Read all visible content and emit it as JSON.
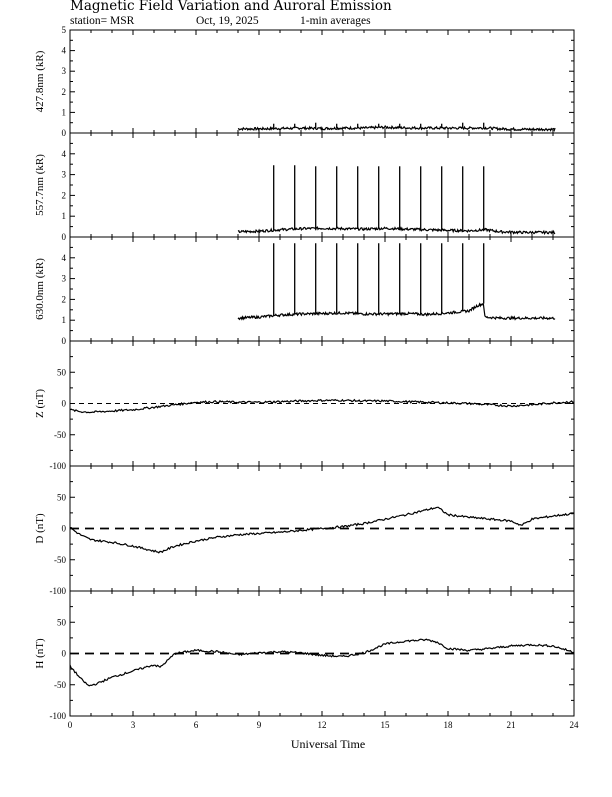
{
  "header": {
    "title": "Magnetic Field Variation and Auroral Emission",
    "station": "station= MSR",
    "date": "Oct, 19, 2025",
    "averaging": "1-min averages"
  },
  "chart_data": {
    "type": "line",
    "xlabel": "Universal Time",
    "xlim": [
      0,
      24
    ],
    "xticks": [
      0,
      3,
      6,
      9,
      12,
      15,
      18,
      21,
      24
    ],
    "panels": [
      {
        "id": "em4278",
        "ylabel": "427.8nm (kR)",
        "ylim": [
          0,
          5
        ],
        "yticks": [
          0,
          1,
          2,
          3,
          4,
          5
        ],
        "zero_line": false,
        "data_range": [
          8.0,
          23.1
        ],
        "series": {
          "x": [
            8.0,
            9.0,
            10.0,
            11.0,
            12.0,
            13.0,
            14.0,
            15.0,
            16.0,
            17.0,
            18.0,
            19.0,
            19.8,
            20.5,
            21.5,
            23.1
          ],
          "y": [
            0.2,
            0.2,
            0.22,
            0.24,
            0.22,
            0.24,
            0.24,
            0.28,
            0.25,
            0.24,
            0.24,
            0.24,
            0.25,
            0.2,
            0.18,
            0.18
          ]
        },
        "spikes": {
          "x": [
            9.7,
            10.7,
            11.7,
            12.7,
            13.7,
            14.7,
            15.7,
            16.7,
            17.7,
            18.7,
            19.7
          ],
          "y": [
            0.45,
            0.45,
            0.5,
            0.45,
            0.45,
            0.45,
            0.45,
            0.45,
            0.45,
            0.5,
            0.5
          ]
        }
      },
      {
        "id": "em5577",
        "ylabel": "557.7nm (kR)",
        "ylim": [
          0,
          5
        ],
        "yticks": [
          0,
          1,
          2,
          3,
          4
        ],
        "zero_line": false,
        "data_range": [
          8.0,
          23.1
        ],
        "series": {
          "x": [
            8.0,
            9.0,
            10.0,
            11.0,
            12.0,
            13.0,
            14.0,
            15.0,
            16.0,
            17.0,
            18.0,
            19.0,
            19.8,
            20.5,
            21.5,
            23.1
          ],
          "y": [
            0.25,
            0.28,
            0.35,
            0.4,
            0.42,
            0.4,
            0.38,
            0.42,
            0.38,
            0.35,
            0.32,
            0.3,
            0.35,
            0.25,
            0.22,
            0.22
          ]
        },
        "spikes": {
          "x": [
            9.7,
            10.7,
            11.7,
            12.7,
            13.7,
            14.7,
            15.7,
            16.7,
            17.7,
            18.7,
            19.7
          ],
          "y": [
            3.45,
            3.45,
            3.4,
            3.4,
            3.4,
            3.4,
            3.4,
            3.4,
            3.4,
            3.4,
            3.4
          ]
        }
      },
      {
        "id": "em6300",
        "ylabel": "630.0nm (kR)",
        "ylim": [
          0,
          5
        ],
        "yticks": [
          0,
          1,
          2,
          3,
          4
        ],
        "zero_line": false,
        "data_range": [
          8.0,
          23.1
        ],
        "series": {
          "x": [
            8.0,
            9.0,
            10.0,
            11.0,
            12.0,
            13.0,
            14.0,
            15.0,
            16.0,
            17.0,
            18.0,
            19.0,
            19.4,
            19.7,
            19.75,
            20.5,
            21.5,
            23.1
          ],
          "y": [
            1.1,
            1.15,
            1.25,
            1.3,
            1.32,
            1.35,
            1.3,
            1.3,
            1.32,
            1.28,
            1.35,
            1.45,
            1.7,
            1.8,
            1.15,
            1.1,
            1.1,
            1.1
          ]
        },
        "spikes": {
          "x": [
            9.7,
            10.7,
            11.7,
            12.7,
            13.7,
            14.7,
            15.7,
            16.7,
            17.7,
            18.7,
            19.7
          ],
          "y": [
            4.7,
            4.7,
            4.7,
            4.7,
            4.7,
            4.7,
            4.7,
            4.7,
            4.7,
            4.7,
            4.7
          ]
        }
      },
      {
        "id": "magZ",
        "ylabel": "Z (nT)",
        "ylim": [
          -100,
          100
        ],
        "yticks": [
          -100,
          -50,
          0,
          50
        ],
        "zero_line": "thin",
        "data_range": [
          0,
          24
        ],
        "series": {
          "x": [
            0,
            0.5,
            1,
            2,
            3,
            4,
            5,
            6,
            7,
            8,
            9,
            10,
            11,
            12,
            13,
            14,
            15,
            16,
            17,
            18,
            19,
            20,
            21,
            22,
            23,
            24
          ],
          "y": [
            -10,
            -13,
            -14,
            -12,
            -10,
            -6,
            -2,
            2,
            3,
            2,
            2,
            3,
            4,
            5,
            5,
            4,
            4,
            3,
            2,
            1,
            0,
            -2,
            -4,
            -2,
            1,
            3
          ]
        }
      },
      {
        "id": "magD",
        "ylabel": "D (nT)",
        "ylim": [
          -100,
          100
        ],
        "yticks": [
          -100,
          -50,
          0,
          50
        ],
        "zero_line": "thick",
        "data_range": [
          0,
          24
        ],
        "series": {
          "x": [
            0,
            0.3,
            0.6,
            1,
            2,
            3,
            4,
            4.3,
            5,
            6,
            7,
            8,
            9,
            10,
            11,
            12,
            13,
            14,
            15,
            16,
            17,
            17.5,
            18,
            19,
            20,
            21,
            21.5,
            22,
            23,
            24
          ],
          "y": [
            2,
            -6,
            -12,
            -18,
            -22,
            -28,
            -36,
            -38,
            -28,
            -20,
            -14,
            -10,
            -8,
            -6,
            -3,
            0,
            3,
            8,
            15,
            22,
            30,
            34,
            22,
            18,
            15,
            12,
            5,
            15,
            20,
            24
          ]
        }
      },
      {
        "id": "magH",
        "ylabel": "H (nT)",
        "ylim": [
          -100,
          100
        ],
        "yticks": [
          -100,
          -50,
          0,
          50
        ],
        "zero_line": "thick",
        "data_range": [
          0,
          24
        ],
        "series": {
          "x": [
            0,
            0.5,
            0.9,
            1.3,
            2,
            3,
            4,
            4.3,
            5,
            6,
            7,
            8,
            9,
            10,
            11,
            12,
            13,
            14,
            15,
            16,
            17,
            17.5,
            18,
            19,
            20,
            21,
            22,
            23,
            24
          ],
          "y": [
            -20,
            -40,
            -52,
            -48,
            -38,
            -28,
            -18,
            -22,
            0,
            5,
            3,
            -2,
            1,
            3,
            1,
            -3,
            -5,
            1,
            15,
            20,
            22,
            18,
            8,
            5,
            8,
            12,
            14,
            12,
            2
          ]
        }
      }
    ]
  }
}
